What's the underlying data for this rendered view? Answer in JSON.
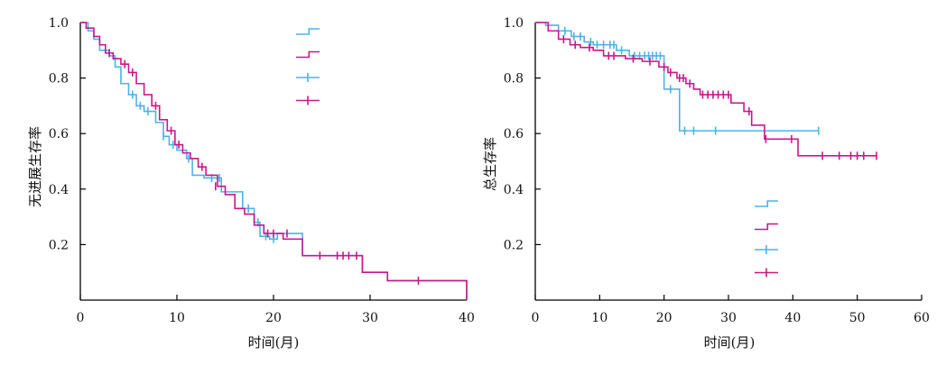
{
  "chart_data": [
    {
      "type": "line",
      "subtype": "kaplan-meier-step",
      "title": "",
      "xlabel": "时间(月)",
      "ylabel": "无进展生存率",
      "xlim": [
        0,
        40
      ],
      "ylim": [
        0,
        1.0
      ],
      "xticks": [
        0,
        10,
        20,
        30,
        40
      ],
      "yticks": [
        0.2,
        0.4,
        0.6,
        0.8,
        1.0
      ],
      "xtick_labels": [
        "0",
        "10",
        "20",
        "30",
        "40"
      ],
      "ytick_labels": [
        "0.2",
        "0.4",
        "0.6",
        "0.8",
        "1.0"
      ],
      "legend_position": "top-right",
      "legend_labels": [
        "",
        "",
        "",
        ""
      ],
      "series": [
        {
          "name": "blue",
          "color": "#4db3e6",
          "x": [
            0,
            0.8,
            1.4,
            2.0,
            3.0,
            3.6,
            4.2,
            5.0,
            5.8,
            6.6,
            7.8,
            8.6,
            9.2,
            10.0,
            11.0,
            11.6,
            12.8,
            14.6,
            16.8,
            18.0,
            18.6,
            19.6,
            20.4,
            23.0,
            29.2,
            31.8,
            40.0
          ],
          "y": [
            1.0,
            0.97,
            0.94,
            0.9,
            0.88,
            0.84,
            0.78,
            0.74,
            0.7,
            0.68,
            0.64,
            0.59,
            0.56,
            0.54,
            0.51,
            0.45,
            0.44,
            0.39,
            0.33,
            0.28,
            0.23,
            0.22,
            0.24,
            0.16,
            0.1,
            0.07,
            0.0
          ],
          "censor_x": [
            3.4,
            5.4,
            6.2,
            7.0,
            8.6,
            9.6,
            11.2,
            13.6,
            14.4,
            17.4,
            18.4,
            19.2,
            20.0
          ],
          "censor_y": [
            0.88,
            0.74,
            0.7,
            0.68,
            0.59,
            0.56,
            0.51,
            0.44,
            0.44,
            0.33,
            0.28,
            0.23,
            0.22
          ]
        },
        {
          "name": "magenta",
          "color": "#c8188c",
          "x": [
            0,
            0.6,
            1.4,
            2.0,
            2.6,
            3.4,
            4.2,
            5.0,
            5.8,
            6.6,
            7.4,
            8.2,
            9.0,
            9.8,
            10.6,
            11.4,
            12.2,
            13.0,
            14.2,
            15.0,
            16.0,
            17.0,
            18.0,
            19.0,
            21.0,
            23.0,
            29.2,
            31.8,
            40.0
          ],
          "y": [
            1.0,
            0.98,
            0.95,
            0.92,
            0.89,
            0.87,
            0.85,
            0.82,
            0.78,
            0.74,
            0.7,
            0.65,
            0.61,
            0.56,
            0.53,
            0.51,
            0.48,
            0.45,
            0.41,
            0.38,
            0.33,
            0.31,
            0.27,
            0.24,
            0.22,
            0.16,
            0.1,
            0.07,
            0.0
          ],
          "censor_x": [
            3.0,
            4.6,
            5.4,
            7.8,
            9.4,
            10.2,
            12.6,
            14.0,
            19.4,
            20.0,
            21.4,
            24.8,
            26.6,
            27.2,
            27.8,
            28.6,
            35.0
          ],
          "censor_y": [
            0.89,
            0.85,
            0.82,
            0.7,
            0.61,
            0.56,
            0.48,
            0.41,
            0.24,
            0.24,
            0.24,
            0.16,
            0.16,
            0.16,
            0.16,
            0.16,
            0.07
          ]
        }
      ]
    },
    {
      "type": "line",
      "subtype": "kaplan-meier-step",
      "title": "",
      "xlabel": "时间(月)",
      "ylabel": "总生存率",
      "xlim": [
        0,
        60
      ],
      "ylim": [
        0,
        1.0
      ],
      "xticks": [
        0,
        10,
        20,
        30,
        40,
        50,
        60
      ],
      "yticks": [
        0.2,
        0.4,
        0.6,
        0.8,
        1.0
      ],
      "xtick_labels": [
        "0",
        "10",
        "20",
        "30",
        "40",
        "50",
        "60"
      ],
      "ytick_labels": [
        "0.2",
        "0.4",
        "0.6",
        "0.8",
        "1.0"
      ],
      "legend_position": "lower-center",
      "legend_labels": [
        "",
        "",
        "",
        ""
      ],
      "series": [
        {
          "name": "blue",
          "color": "#4db3e6",
          "x": [
            0,
            1.6,
            3.6,
            5.6,
            7.6,
            9.0,
            12.6,
            14.6,
            20.0,
            22.4,
            44.0
          ],
          "y": [
            1.0,
            0.99,
            0.97,
            0.95,
            0.93,
            0.92,
            0.9,
            0.88,
            0.76,
            0.61,
            0.61
          ],
          "censor_x": [
            4.6,
            6.0,
            7.0,
            8.6,
            9.6,
            10.6,
            11.6,
            12.2,
            13.4,
            15.4,
            16.2,
            17.0,
            17.6,
            18.2,
            18.8,
            19.4,
            21.0,
            23.2,
            24.6,
            28.0,
            44.0
          ],
          "censor_y": [
            0.97,
            0.95,
            0.95,
            0.93,
            0.92,
            0.92,
            0.92,
            0.92,
            0.9,
            0.88,
            0.88,
            0.88,
            0.88,
            0.88,
            0.88,
            0.88,
            0.76,
            0.61,
            0.61,
            0.61,
            0.61
          ]
        },
        {
          "name": "magenta",
          "color": "#c8188c",
          "x": [
            0,
            2.0,
            3.6,
            5.4,
            7.0,
            9.0,
            10.6,
            14.0,
            16.6,
            19.2,
            20.6,
            22.0,
            23.4,
            24.6,
            25.6,
            30.4,
            32.4,
            33.6,
            35.6,
            40.8,
            53.0
          ],
          "y": [
            1.0,
            0.97,
            0.94,
            0.92,
            0.91,
            0.9,
            0.88,
            0.87,
            0.86,
            0.84,
            0.82,
            0.8,
            0.78,
            0.76,
            0.74,
            0.71,
            0.68,
            0.63,
            0.58,
            0.52,
            0.52
          ],
          "censor_x": [
            4.4,
            6.2,
            8.4,
            11.4,
            12.2,
            15.2,
            17.8,
            20.0,
            21.0,
            22.4,
            23.0,
            24.0,
            26.0,
            26.8,
            27.6,
            28.4,
            29.2,
            30.0,
            33.2,
            35.8,
            39.8,
            44.6,
            47.2,
            49.0,
            50.0,
            51.0,
            53.0
          ],
          "censor_y": [
            0.94,
            0.92,
            0.91,
            0.88,
            0.88,
            0.87,
            0.86,
            0.84,
            0.82,
            0.8,
            0.8,
            0.78,
            0.74,
            0.74,
            0.74,
            0.74,
            0.74,
            0.74,
            0.68,
            0.58,
            0.58,
            0.52,
            0.52,
            0.52,
            0.52,
            0.52,
            0.52
          ]
        }
      ]
    }
  ]
}
